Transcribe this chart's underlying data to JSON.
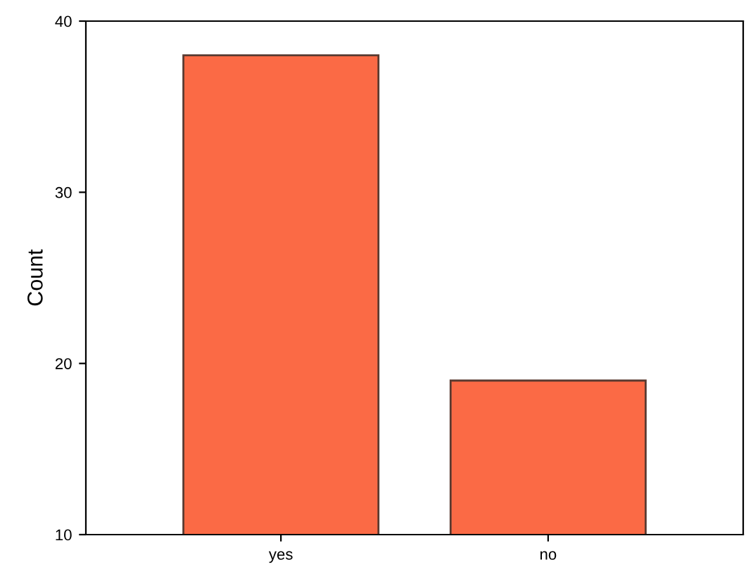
{
  "chart_data": {
    "type": "bar",
    "ylabel": "Count",
    "categories": [
      "yes",
      "no"
    ],
    "values": [
      38,
      19
    ],
    "color": "#fb6a45",
    "ylim": [
      10,
      40
    ],
    "yticks": [
      10,
      20,
      30,
      40
    ],
    "grid": false,
    "legend": false
  }
}
